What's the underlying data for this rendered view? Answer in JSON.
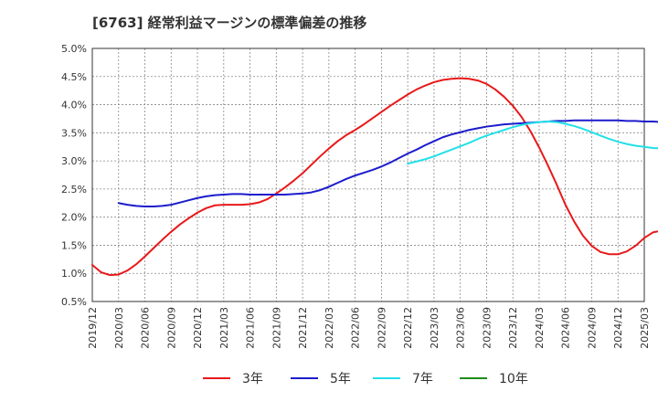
{
  "chart_data": {
    "type": "line",
    "title": "[6763]  経常利益マージンの標準偏差の推移",
    "xlabel": "",
    "ylabel": "",
    "x_ticks": [
      "2019/12",
      "2020/03",
      "2020/06",
      "2020/09",
      "2020/12",
      "2021/03",
      "2021/06",
      "2021/09",
      "2021/12",
      "2022/03",
      "2022/06",
      "2022/09",
      "2022/12",
      "2023/03",
      "2023/06",
      "2023/09",
      "2023/12",
      "2024/03",
      "2024/06",
      "2024/09",
      "2024/12",
      "2025/03"
    ],
    "y_ticks": [
      "0.5%",
      "1.0%",
      "1.5%",
      "2.0%",
      "2.5%",
      "3.0%",
      "3.5%",
      "4.0%",
      "4.5%",
      "5.0%"
    ],
    "ylim": [
      0.5,
      5.0
    ],
    "grid": true,
    "legend_position": "bottom",
    "series": [
      {
        "name": "3年",
        "color": "#e8191a",
        "x_start": "2019/12",
        "values": [
          1.15,
          1.02,
          0.97,
          0.98,
          1.05,
          1.16,
          1.3,
          1.45,
          1.6,
          1.74,
          1.87,
          1.98,
          2.08,
          2.16,
          2.21,
          2.22,
          2.22,
          2.22,
          2.23,
          2.26,
          2.32,
          2.42,
          2.53,
          2.65,
          2.78,
          2.93,
          3.08,
          3.22,
          3.35,
          3.46,
          3.55,
          3.65,
          3.76,
          3.87,
          3.98,
          4.08,
          4.18,
          4.27,
          4.34,
          4.4,
          4.44,
          4.46,
          4.47,
          4.46,
          4.43,
          4.37,
          4.27,
          4.14,
          3.98,
          3.78,
          3.53,
          3.24,
          2.92,
          2.58,
          2.22,
          1.92,
          1.67,
          1.49,
          1.38,
          1.34,
          1.34,
          1.39,
          1.49,
          1.63,
          1.73,
          1.76,
          1.76,
          1.74
        ]
      },
      {
        "name": "5年",
        "color": "#1c1ccc",
        "x_start": "2020/03",
        "values": [
          2.25,
          2.22,
          2.2,
          2.19,
          2.19,
          2.2,
          2.22,
          2.26,
          2.3,
          2.34,
          2.37,
          2.39,
          2.4,
          2.41,
          2.41,
          2.4,
          2.4,
          2.4,
          2.4,
          2.4,
          2.41,
          2.42,
          2.44,
          2.48,
          2.54,
          2.61,
          2.68,
          2.74,
          2.79,
          2.84,
          2.9,
          2.97,
          3.05,
          3.13,
          3.2,
          3.28,
          3.35,
          3.42,
          3.47,
          3.51,
          3.55,
          3.58,
          3.61,
          3.63,
          3.65,
          3.66,
          3.67,
          3.68,
          3.69,
          3.7,
          3.71,
          3.71,
          3.72,
          3.72,
          3.72,
          3.72,
          3.72,
          3.72,
          3.71,
          3.71,
          3.7,
          3.7,
          3.69,
          3.69,
          3.68,
          3.66
        ]
      },
      {
        "name": "7年",
        "color": "#22e0e8",
        "x_start": "2022/12",
        "values": [
          2.95,
          2.99,
          3.03,
          3.08,
          3.14,
          3.2,
          3.26,
          3.32,
          3.39,
          3.45,
          3.5,
          3.55,
          3.6,
          3.64,
          3.67,
          3.69,
          3.7,
          3.69,
          3.66,
          3.62,
          3.57,
          3.51,
          3.45,
          3.39,
          3.34,
          3.3,
          3.27,
          3.25,
          3.23,
          3.22,
          3.22,
          3.22,
          3.22,
          3.22,
          3.22,
          3.22,
          3.22,
          3.23
        ]
      },
      {
        "name": "10年",
        "color": "#1e8c1e",
        "x_start": "2022/12",
        "values": []
      }
    ]
  }
}
